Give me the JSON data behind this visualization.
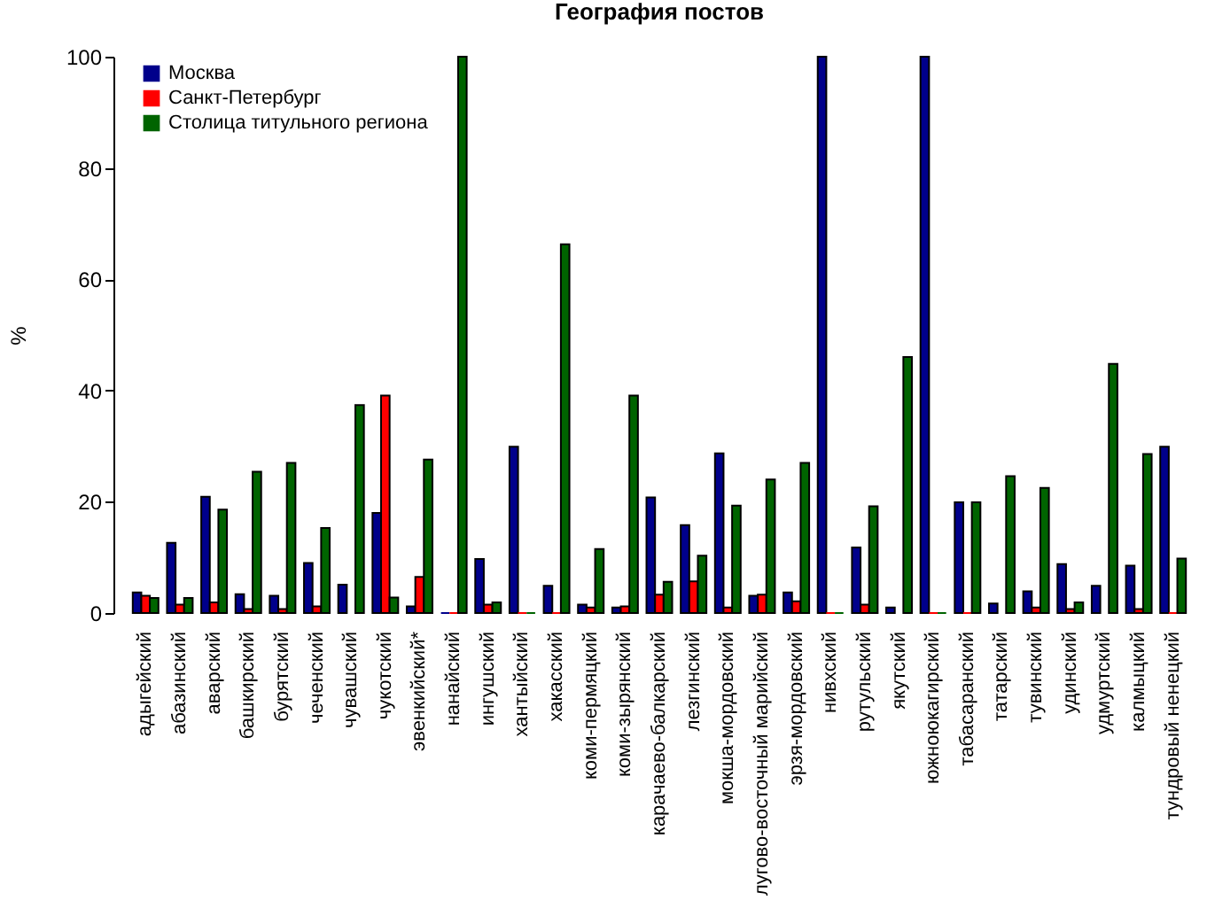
{
  "chart_data": {
    "type": "bar",
    "title": "География постов",
    "ylabel": "%",
    "categories": [
      "адыгейский",
      "абазинский",
      "аварский",
      "башкирский",
      "бурятский",
      "чеченский",
      "чувашский",
      "чукотский",
      "эвенкийский*",
      "нанайский",
      "ингушский",
      "хантыйский",
      "хакасский",
      "коми-пермяцкий",
      "коми-зырянский",
      "карачаево-балкарский",
      "лезгинский",
      "мокша-мордовский",
      "лугово-восточный марийский",
      "эрзя-мордовский",
      "нивхский",
      "рутульский",
      "якутский",
      "южноюкагирский",
      "табасаранский",
      "татарский",
      "тувинский",
      "удинский",
      "удмуртский",
      "калмыцкий",
      "тундровый ненецкий"
    ],
    "series": [
      {
        "name": "Москва",
        "color": "#00008b",
        "values": [
          3.7,
          12.6,
          20.9,
          3.4,
          3.1,
          9.0,
          5.1,
          18.0,
          1.2,
          0,
          9.7,
          29.9,
          4.9,
          1.5,
          1.0,
          20.8,
          15.8,
          28.7,
          3.1,
          3.7,
          100,
          11.8,
          1.0,
          100,
          19.9,
          1.7,
          3.9,
          8.8,
          4.9,
          8.5,
          29.9
        ]
      },
      {
        "name": "Санкт-Петербург",
        "color": "#ff0000",
        "values": [
          3.1,
          1.5,
          1.9,
          0.7,
          0.7,
          1.2,
          null,
          39.1,
          6.5,
          0,
          1.5,
          0,
          0,
          1.0,
          1.2,
          3.3,
          5.7,
          1.0,
          3.3,
          2.1,
          0,
          1.5,
          null,
          0,
          0,
          null,
          1.0,
          0.7,
          null,
          0.7,
          0
        ]
      },
      {
        "name": "Столица титульного региона",
        "color": "#006400",
        "values": [
          2.7,
          2.7,
          18.6,
          25.4,
          27.0,
          15.3,
          37.4,
          2.8,
          27.6,
          100,
          1.9,
          0,
          66.3,
          11.5,
          39.1,
          5.6,
          10.3,
          19.3,
          24.0,
          27.0,
          0,
          19.2,
          46.0,
          0,
          19.9,
          24.6,
          22.5,
          1.9,
          44.8,
          28.6,
          9.8
        ]
      }
    ],
    "ylim": [
      0,
      100
    ],
    "yticks": [
      0,
      20,
      40,
      60,
      80,
      100
    ],
    "legend": "top left"
  }
}
